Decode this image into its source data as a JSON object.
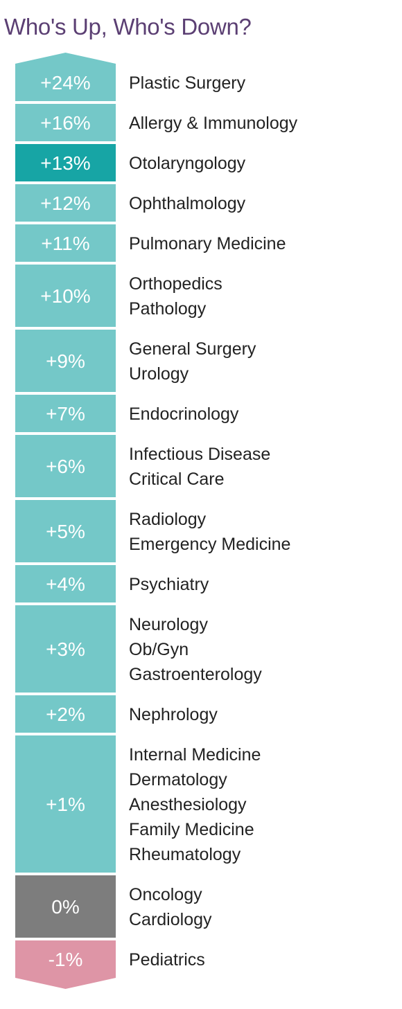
{
  "title": "Who's Up, Who's Down?",
  "colors": {
    "up": "#74c8c8",
    "highlight": "#17a5a5",
    "neutral": "#7d7d7d",
    "down": "#de95a6",
    "highlight_text": "#c54c6c",
    "title": "#5b3f73"
  },
  "chart_data": {
    "type": "table",
    "title": "Who's Up, Who's Down?",
    "rows": [
      {
        "label": "+24%",
        "value": 24,
        "specialties": [
          "Plastic Surgery"
        ]
      },
      {
        "label": "+16%",
        "value": 16,
        "specialties": [
          "Allergy & Immunology"
        ]
      },
      {
        "label": "+13%",
        "value": 13,
        "specialties": [
          "Otolaryngology"
        ],
        "highlight": true
      },
      {
        "label": "+12%",
        "value": 12,
        "specialties": [
          "Ophthalmology"
        ]
      },
      {
        "label": "+11%",
        "value": 11,
        "specialties": [
          "Pulmonary Medicine"
        ]
      },
      {
        "label": "+10%",
        "value": 10,
        "specialties": [
          "Orthopedics",
          "Pathology"
        ]
      },
      {
        "label": "+9%",
        "value": 9,
        "specialties": [
          "General Surgery",
          "Urology"
        ]
      },
      {
        "label": "+7%",
        "value": 7,
        "specialties": [
          "Endocrinology"
        ]
      },
      {
        "label": "+6%",
        "value": 6,
        "specialties": [
          "Infectious Disease",
          "Critical Care"
        ]
      },
      {
        "label": "+5%",
        "value": 5,
        "specialties": [
          "Radiology",
          "Emergency Medicine"
        ]
      },
      {
        "label": "+4%",
        "value": 4,
        "specialties": [
          "Psychiatry"
        ]
      },
      {
        "label": "+3%",
        "value": 3,
        "specialties": [
          "Neurology",
          "Ob/Gyn",
          "Gastroenterology"
        ]
      },
      {
        "label": "+2%",
        "value": 2,
        "specialties": [
          "Nephrology"
        ]
      },
      {
        "label": "+1%",
        "value": 1,
        "specialties": [
          "Internal Medicine",
          "Dermatology",
          "Anesthesiology",
          "Family Medicine",
          "Rheumatology"
        ]
      },
      {
        "label": "0%",
        "value": 0,
        "specialties": [
          "Oncology",
          "Cardiology"
        ]
      },
      {
        "label": "-1%",
        "value": -1,
        "specialties": [
          "Pediatrics"
        ]
      }
    ]
  }
}
